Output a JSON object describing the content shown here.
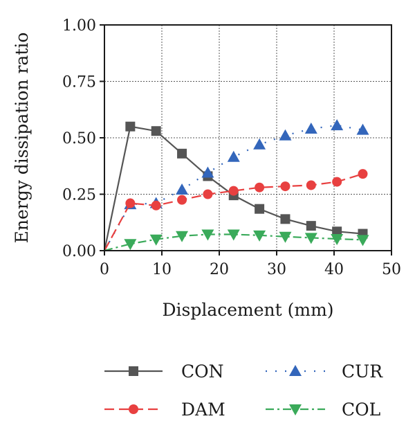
{
  "chart_data": {
    "type": "line",
    "xlabel": "Displacement (mm)",
    "ylabel": "Energy dissipation ratio",
    "xlim": [
      0,
      50
    ],
    "ylim": [
      0,
      1
    ],
    "x_ticks": [
      0,
      10,
      20,
      30,
      40,
      50
    ],
    "x_tick_labels": [
      "0",
      "10",
      "20",
      "30",
      "40",
      "50"
    ],
    "y_ticks": [
      0,
      0.25,
      0.5,
      0.75,
      1.0
    ],
    "y_tick_labels": [
      "0.00",
      "0.25",
      "0.50",
      "0.75",
      "1.00"
    ],
    "grid": true,
    "legend_position": "bottom",
    "series": [
      {
        "name": "CON",
        "color": "#555555",
        "marker": "square",
        "line_style": "solid",
        "x": [
          0,
          4.5,
          9,
          13.5,
          18,
          22.5,
          27,
          31.5,
          36,
          40.5,
          45
        ],
        "y": [
          0.0,
          0.55,
          0.53,
          0.43,
          0.33,
          0.245,
          0.185,
          0.14,
          0.11,
          0.085,
          0.075
        ]
      },
      {
        "name": "CUR",
        "color": "#3366bb",
        "marker": "triangle-up",
        "line_style": "dotted",
        "x": [
          0,
          4.5,
          9,
          13.5,
          18,
          22.5,
          27,
          31.5,
          36,
          40.5,
          45
        ],
        "y": [
          0.0,
          0.205,
          0.21,
          0.27,
          0.345,
          0.415,
          0.47,
          0.51,
          0.54,
          0.555,
          0.535
        ]
      },
      {
        "name": "DAM",
        "color": "#e84040",
        "marker": "circle",
        "line_style": "dashed",
        "x": [
          0,
          4.5,
          9,
          13.5,
          18,
          22.5,
          27,
          31.5,
          36,
          40.5,
          45
        ],
        "y": [
          0.0,
          0.21,
          0.2,
          0.225,
          0.25,
          0.265,
          0.28,
          0.285,
          0.29,
          0.305,
          0.34
        ]
      },
      {
        "name": "COL",
        "color": "#3aaa5a",
        "marker": "triangle-down",
        "line_style": "dash-dot",
        "x": [
          0,
          4.5,
          9,
          13.5,
          18,
          22.5,
          27,
          31.5,
          36,
          40.5,
          45
        ],
        "y": [
          0.0,
          0.03,
          0.05,
          0.065,
          0.072,
          0.072,
          0.068,
          0.062,
          0.057,
          0.052,
          0.048
        ]
      }
    ],
    "legend_order": [
      "CON",
      "CUR",
      "DAM",
      "COL"
    ]
  }
}
